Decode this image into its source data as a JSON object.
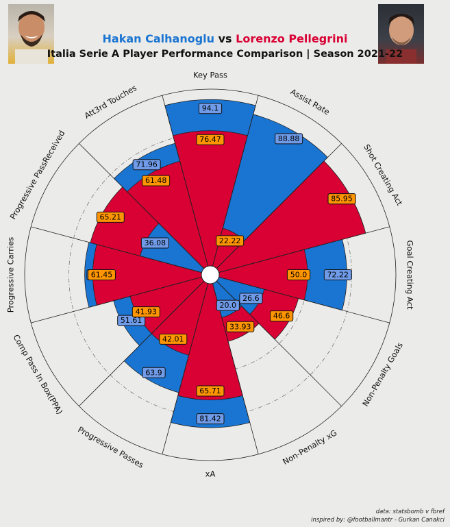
{
  "header": {
    "player_a": "Hakan Calhanoglu",
    "vs": "vs",
    "player_b": "Lorenzo Pellegrini",
    "subtitle": "Italia Serie A Player Performance Comparison | Season 2021-22"
  },
  "footer": {
    "source": "data: statsbomb v fbref",
    "credit": "inspired by: @footballmantr - Gurkan Canakci"
  },
  "colors": {
    "player_a": "#1a74d1",
    "player_b": "#d90034",
    "label_a_box": "#6f9be8",
    "label_b_box": "#ff9500",
    "background": "#ebebe9"
  },
  "chart_data": {
    "type": "radar",
    "subtype": "pizza",
    "title": "Italia Serie A Player Performance Comparison | Season 2021-22",
    "rmax": 100,
    "categories": [
      "Key Pass",
      "Assist Rate",
      "Shot Creating Act",
      "Goal Creating Act",
      "Non-Penalty Goals",
      "Non-Penalty xG",
      "xA",
      "Progressive Passes",
      "Comp Pass In Box(PPA)",
      "Progressive Carries",
      "Progressive PassReceived",
      "Att3rd Touches"
    ],
    "series": [
      {
        "name": "Hakan Calhanoglu",
        "values": [
          94.1,
          88.88,
          85.95,
          72.22,
          26.6,
          20.0,
          81.42,
          63.9,
          51.61,
          66,
          36.08,
          71.96
        ],
        "labels": [
          "94.1",
          "88.88",
          "85.95",
          "72.22",
          "26.6",
          "20.0",
          "81.42",
          "63.9",
          "51.61",
          "66",
          "36.08",
          "71.96"
        ]
      },
      {
        "name": "Lorenzo Pellegrini",
        "values": [
          76.47,
          22.22,
          85.95,
          50.0,
          46.6,
          33.93,
          65.71,
          42.01,
          41.93,
          61.45,
          65.21,
          61.48
        ],
        "labels": [
          "76.47",
          "22.22",
          "85.95",
          "50.0",
          "46.6",
          "33.93",
          "65.71",
          "42.01",
          "41.93",
          "61.45",
          "65.21",
          "61.48"
        ]
      }
    ],
    "legend": "title"
  }
}
